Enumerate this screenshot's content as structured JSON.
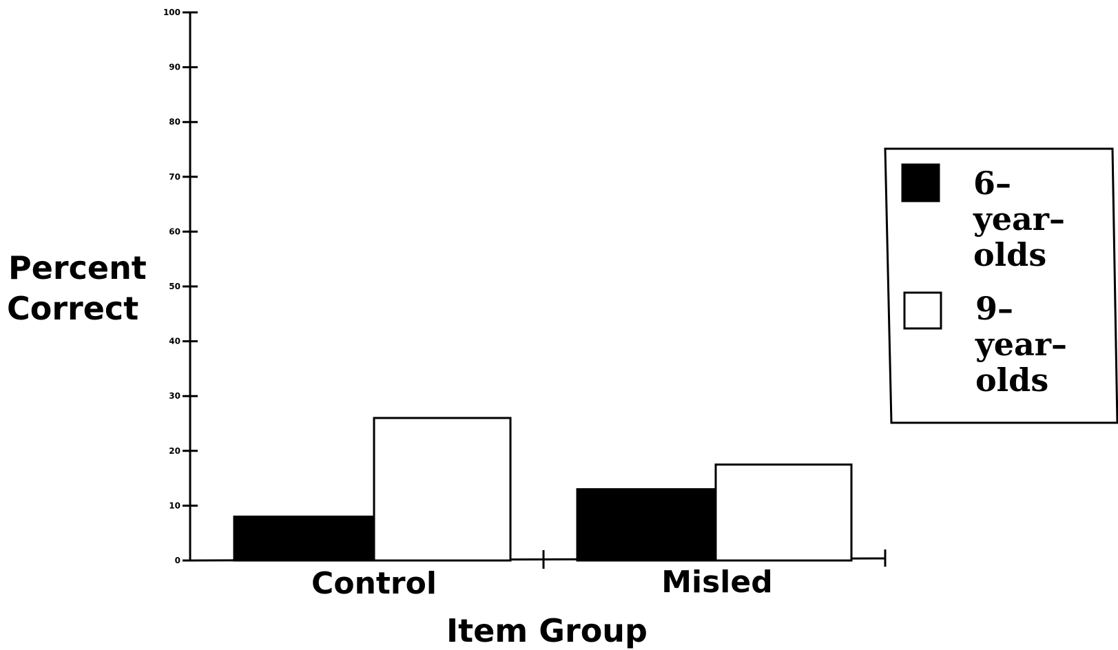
{
  "chart_data": {
    "type": "bar",
    "categories": [
      "Control",
      "Misled"
    ],
    "series": [
      {
        "name": "6-year-olds",
        "values": [
          8,
          13
        ],
        "color": "#000000"
      },
      {
        "name": "9-year-olds",
        "values": [
          26,
          17.5
        ],
        "color": "#ffffff"
      }
    ],
    "xlabel": "Item Group",
    "ylabel_lines": [
      "Percent",
      "Correct"
    ],
    "ylim": [
      0,
      100
    ],
    "yticks": [
      0,
      10,
      20,
      30,
      40,
      50,
      60,
      70,
      80,
      90,
      100
    ],
    "ytick_labels": [
      "0",
      "10",
      "20",
      "30",
      "40",
      "50",
      "60",
      "70",
      "80",
      "90",
      "100"
    ],
    "legend": {
      "position": "right",
      "entries": [
        {
          "lines": [
            "6–",
            "year–",
            "olds"
          ],
          "swatch": "#000000"
        },
        {
          "lines": [
            "9–",
            "year–",
            "olds"
          ],
          "swatch": "#ffffff"
        }
      ]
    },
    "grid": false
  }
}
